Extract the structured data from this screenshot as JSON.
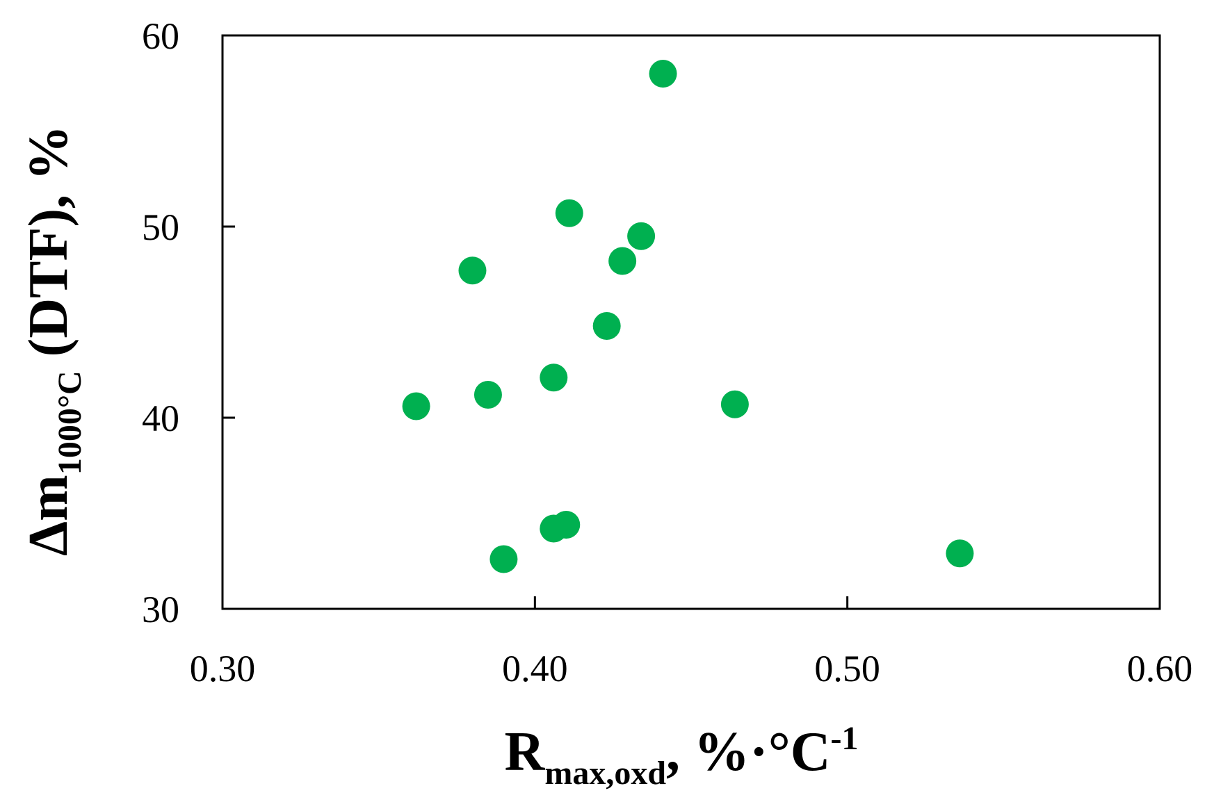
{
  "chart_data": {
    "type": "scatter",
    "title": "",
    "xlabel": {
      "main": "R",
      "sub": "max,oxd",
      "tail": ", %·°C",
      "sup": "-1"
    },
    "ylabel": {
      "main": "Δm",
      "sub": "1000°C",
      "tail": " (DTF), %"
    },
    "xlim": [
      0.3,
      0.6
    ],
    "ylim": [
      30,
      60
    ],
    "x_ticks": [
      "0.30",
      "0.40",
      "0.50",
      "0.60"
    ],
    "y_ticks": [
      "30",
      "40",
      "50",
      "60"
    ],
    "grid": false,
    "marker_color": "#00b050",
    "series": [
      {
        "points": [
          {
            "x": 0.441,
            "y": 58.0
          },
          {
            "x": 0.411,
            "y": 50.7
          },
          {
            "x": 0.434,
            "y": 49.5
          },
          {
            "x": 0.428,
            "y": 48.2
          },
          {
            "x": 0.38,
            "y": 47.7
          },
          {
            "x": 0.423,
            "y": 44.8
          },
          {
            "x": 0.406,
            "y": 42.1
          },
          {
            "x": 0.385,
            "y": 41.2
          },
          {
            "x": 0.362,
            "y": 40.6
          },
          {
            "x": 0.464,
            "y": 40.7
          },
          {
            "x": 0.406,
            "y": 34.2
          },
          {
            "x": 0.41,
            "y": 34.4
          },
          {
            "x": 0.39,
            "y": 32.6
          },
          {
            "x": 0.536,
            "y": 32.9
          }
        ]
      }
    ]
  }
}
